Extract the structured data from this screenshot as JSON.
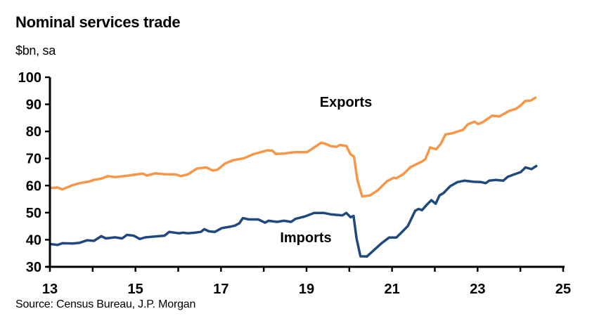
{
  "chart_data": {
    "type": "line",
    "title": "Nominal services trade",
    "subtitle": "$bn, sa",
    "source": "Source: Census Bureau, J.P. Morgan",
    "xlabel": "",
    "ylabel": "",
    "xlim": [
      13,
      25
    ],
    "ylim": [
      30,
      100
    ],
    "x_ticks": [
      "13",
      "15",
      "17",
      "19",
      "21",
      "23",
      "25"
    ],
    "y_ticks": [
      "30",
      "40",
      "50",
      "60",
      "70",
      "80",
      "90",
      "100"
    ],
    "grid": false,
    "legend": "inline labels",
    "series": [
      {
        "name": "Exports",
        "color": "#F79646",
        "points": [
          [
            13.02,
            59.1
          ],
          [
            13.18,
            59.3
          ],
          [
            13.29,
            58.6
          ],
          [
            13.54,
            60.2
          ],
          [
            13.7,
            60.9
          ],
          [
            13.92,
            61.5
          ],
          [
            14.03,
            62.1
          ],
          [
            14.2,
            62.6
          ],
          [
            14.36,
            63.5
          ],
          [
            14.52,
            63.1
          ],
          [
            14.85,
            63.7
          ],
          [
            14.96,
            64.0
          ],
          [
            15.18,
            64.4
          ],
          [
            15.26,
            63.7
          ],
          [
            15.46,
            64.5
          ],
          [
            15.68,
            64.2
          ],
          [
            15.95,
            64.1
          ],
          [
            16.06,
            63.5
          ],
          [
            16.22,
            64.1
          ],
          [
            16.44,
            66.3
          ],
          [
            16.66,
            66.7
          ],
          [
            16.8,
            65.6
          ],
          [
            16.91,
            65.8
          ],
          [
            17.1,
            68.2
          ],
          [
            17.27,
            69.3
          ],
          [
            17.54,
            70.1
          ],
          [
            17.76,
            71.6
          ],
          [
            17.92,
            72.3
          ],
          [
            18.09,
            73.0
          ],
          [
            18.2,
            72.9
          ],
          [
            18.28,
            71.7
          ],
          [
            18.47,
            71.8
          ],
          [
            18.64,
            72.2
          ],
          [
            18.74,
            72.3
          ],
          [
            19.01,
            72.3
          ],
          [
            19.34,
            75.8
          ],
          [
            19.45,
            75.4
          ],
          [
            19.56,
            74.6
          ],
          [
            19.7,
            74.3
          ],
          [
            19.78,
            75.0
          ],
          [
            19.93,
            74.6
          ],
          [
            20.03,
            71.5
          ],
          [
            20.11,
            70.7
          ],
          [
            20.19,
            62.0
          ],
          [
            20.3,
            56.0
          ],
          [
            20.49,
            56.4
          ],
          [
            20.66,
            58.2
          ],
          [
            20.88,
            61.6
          ],
          [
            21.04,
            62.9
          ],
          [
            21.1,
            62.7
          ],
          [
            21.26,
            64.2
          ],
          [
            21.43,
            66.8
          ],
          [
            21.7,
            68.9
          ],
          [
            21.78,
            69.8
          ],
          [
            21.89,
            74.1
          ],
          [
            22.03,
            73.4
          ],
          [
            22.14,
            75.4
          ],
          [
            22.25,
            78.9
          ],
          [
            22.41,
            79.3
          ],
          [
            22.66,
            80.6
          ],
          [
            22.77,
            82.6
          ],
          [
            22.93,
            83.6
          ],
          [
            23.01,
            82.7
          ],
          [
            23.12,
            83.4
          ],
          [
            23.34,
            85.8
          ],
          [
            23.51,
            85.5
          ],
          [
            23.73,
            87.5
          ],
          [
            23.89,
            88.3
          ],
          [
            24.0,
            89.5
          ],
          [
            24.11,
            91.2
          ],
          [
            24.24,
            91.4
          ],
          [
            24.35,
            92.4
          ]
        ]
      },
      {
        "name": "Imports",
        "color": "#1F497D",
        "points": [
          [
            13.02,
            38.4
          ],
          [
            13.18,
            38.1
          ],
          [
            13.29,
            38.7
          ],
          [
            13.54,
            38.6
          ],
          [
            13.7,
            38.9
          ],
          [
            13.87,
            39.8
          ],
          [
            14.03,
            39.6
          ],
          [
            14.2,
            41.3
          ],
          [
            14.31,
            40.5
          ],
          [
            14.52,
            40.9
          ],
          [
            14.69,
            40.5
          ],
          [
            14.8,
            41.8
          ],
          [
            14.96,
            41.5
          ],
          [
            15.1,
            40.3
          ],
          [
            15.23,
            40.9
          ],
          [
            15.68,
            41.5
          ],
          [
            15.79,
            42.9
          ],
          [
            16.01,
            42.4
          ],
          [
            16.12,
            42.6
          ],
          [
            16.22,
            42.4
          ],
          [
            16.39,
            42.6
          ],
          [
            16.53,
            42.9
          ],
          [
            16.61,
            43.9
          ],
          [
            16.72,
            43.1
          ],
          [
            16.86,
            42.9
          ],
          [
            17.02,
            44.3
          ],
          [
            17.21,
            44.8
          ],
          [
            17.32,
            45.2
          ],
          [
            17.43,
            46.1
          ],
          [
            17.51,
            48.0
          ],
          [
            17.65,
            47.5
          ],
          [
            17.87,
            47.5
          ],
          [
            18.03,
            46.3
          ],
          [
            18.11,
            47.0
          ],
          [
            18.31,
            46.6
          ],
          [
            18.47,
            47.0
          ],
          [
            18.64,
            46.6
          ],
          [
            18.74,
            47.7
          ],
          [
            18.96,
            48.6
          ],
          [
            19.18,
            49.9
          ],
          [
            19.4,
            49.9
          ],
          [
            19.56,
            49.4
          ],
          [
            19.84,
            49.0
          ],
          [
            19.93,
            49.9
          ],
          [
            20.03,
            48.3
          ],
          [
            20.1,
            48.8
          ],
          [
            20.17,
            40.4
          ],
          [
            20.26,
            33.9
          ],
          [
            20.41,
            33.8
          ],
          [
            20.6,
            36.5
          ],
          [
            20.76,
            38.8
          ],
          [
            20.93,
            40.8
          ],
          [
            21.1,
            40.8
          ],
          [
            21.21,
            42.5
          ],
          [
            21.37,
            45.1
          ],
          [
            21.54,
            50.7
          ],
          [
            21.62,
            51.4
          ],
          [
            21.7,
            50.9
          ],
          [
            21.81,
            52.9
          ],
          [
            21.92,
            54.6
          ],
          [
            22.02,
            53.3
          ],
          [
            22.11,
            56.4
          ],
          [
            22.2,
            57.2
          ],
          [
            22.36,
            59.8
          ],
          [
            22.53,
            61.3
          ],
          [
            22.69,
            61.8
          ],
          [
            22.91,
            61.4
          ],
          [
            23.08,
            61.3
          ],
          [
            23.19,
            60.9
          ],
          [
            23.27,
            61.8
          ],
          [
            23.43,
            62.1
          ],
          [
            23.6,
            61.8
          ],
          [
            23.71,
            63.3
          ],
          [
            23.85,
            64.1
          ],
          [
            24.01,
            65.0
          ],
          [
            24.12,
            66.7
          ],
          [
            24.26,
            66.1
          ],
          [
            24.37,
            67.2
          ]
        ]
      }
    ]
  }
}
